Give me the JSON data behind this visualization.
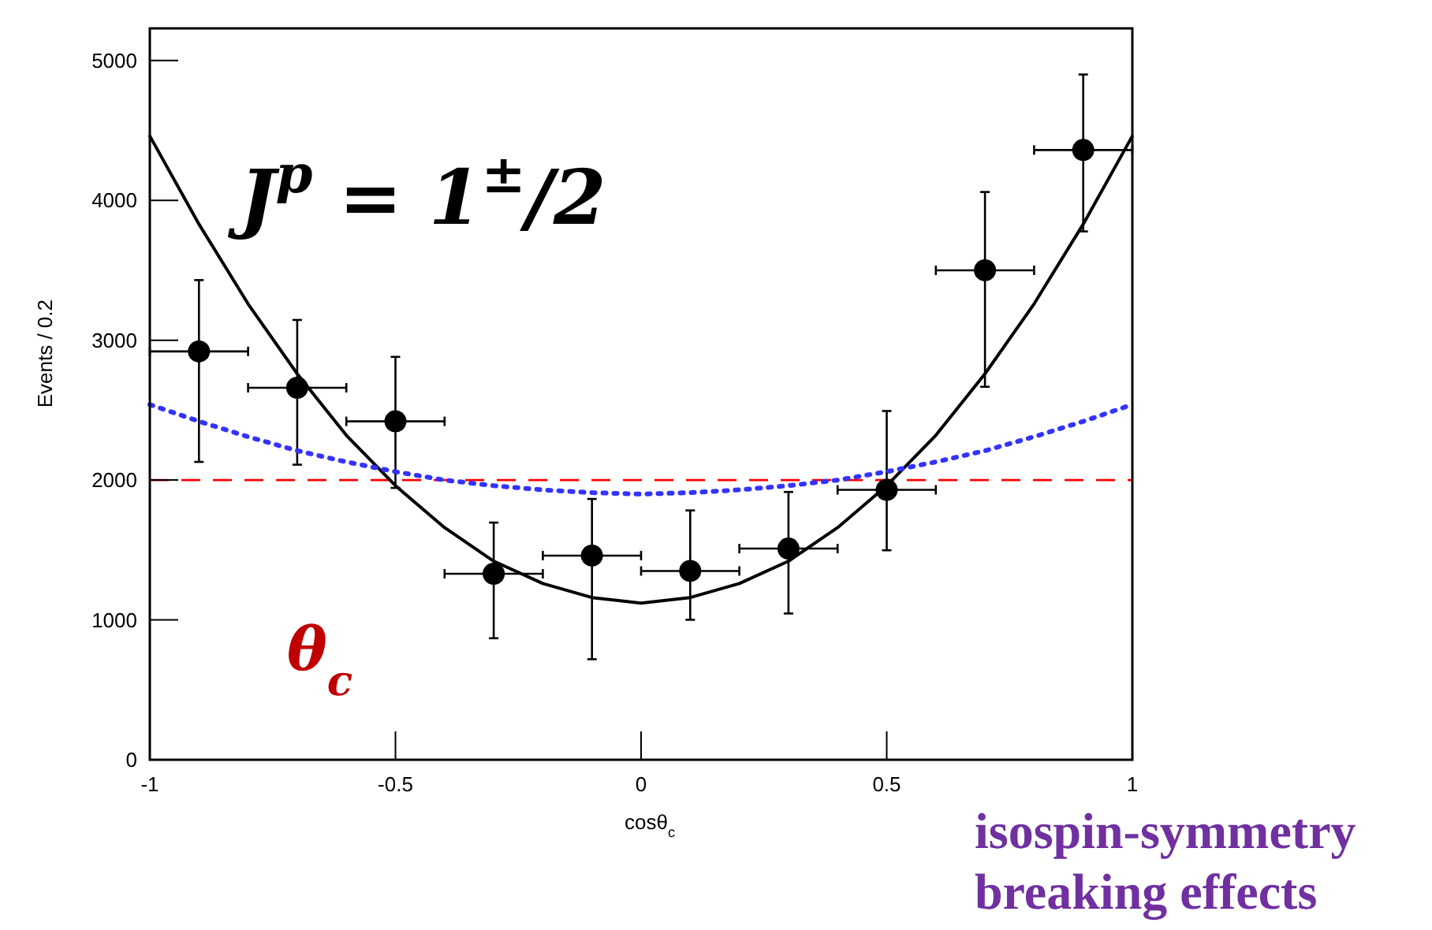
{
  "chart_data": {
    "type": "scatter",
    "xlabel": "cosθ$_{c}$",
    "ylabel": "Events / 0.2",
    "xlim": [
      -1,
      1
    ],
    "ylim": [
      0,
      5230
    ],
    "xticks": [
      -1,
      -0.5,
      0,
      0.5,
      1
    ],
    "yticks": [
      0,
      1000,
      2000,
      3000,
      4000,
      5000
    ],
    "grid": false,
    "series": [
      {
        "color": "#000000",
        "marker": "circle",
        "x": [
          -0.9,
          -0.7,
          -0.5,
          -0.3,
          -0.1,
          0.1,
          0.3,
          0.5,
          0.7,
          0.9
        ],
        "values": [
          2920,
          2660,
          2420,
          1330,
          1460,
          1350,
          1510,
          1930,
          3500,
          4360
        ],
        "errors": [
          [
            2130,
            3430
          ],
          [
            2110,
            3145
          ],
          [
            1944,
            2881
          ],
          [
            869,
            1696
          ],
          [
            719,
            1865
          ],
          [
            1001,
            1783
          ],
          [
            1046,
            1915
          ],
          [
            1498,
            2494
          ],
          [
            2667,
            4060
          ],
          [
            3778,
            4900
          ]
        ],
        "xerrors": [
          0.1,
          0.1,
          0.1,
          0.1,
          0.1,
          0.1,
          0.1,
          0.1,
          0.1,
          0.1
        ]
      },
      {
        "type": "line",
        "color": "#000000",
        "line_style": "solid",
        "marker": "none",
        "x": [
          -1,
          -0.9,
          -0.8,
          -0.7,
          -0.6,
          -0.5,
          -0.4,
          -0.3,
          -0.2,
          -0.1,
          0,
          0.1,
          0.2,
          0.3,
          0.4,
          0.5,
          0.6,
          0.7,
          0.8,
          0.9,
          1
        ],
        "values": [
          4460,
          3830,
          3260,
          2760,
          2320,
          1960,
          1660,
          1420,
          1260,
          1160,
          1120,
          1160,
          1260,
          1420,
          1660,
          1960,
          2320,
          2760,
          3260,
          3830,
          4460
        ]
      },
      {
        "type": "line",
        "color": "#3333ff",
        "line_style": "dotted",
        "marker": "none",
        "x": [
          -1,
          -0.9,
          -0.8,
          -0.7,
          -0.6,
          -0.5,
          -0.4,
          -0.3,
          -0.2,
          -0.1,
          0,
          0.1,
          0.2,
          0.3,
          0.4,
          0.5,
          0.6,
          0.7,
          0.8,
          0.9,
          1
        ],
        "values": [
          2540,
          2420,
          2310,
          2210,
          2130,
          2060,
          2000,
          1960,
          1930,
          1910,
          1900,
          1910,
          1930,
          1960,
          2000,
          2060,
          2130,
          2210,
          2310,
          2420,
          2540
        ]
      }
    ],
    "ref_lines": [
      {
        "axis": "y",
        "value": 2000,
        "color": "#ff0000",
        "line_style": "dashed"
      }
    ],
    "annotations": [
      "J$^{p}$ = 1$^{±}$/2",
      "θ$_{c}$",
      "isospin-symmetry breaking effects"
    ]
  }
}
